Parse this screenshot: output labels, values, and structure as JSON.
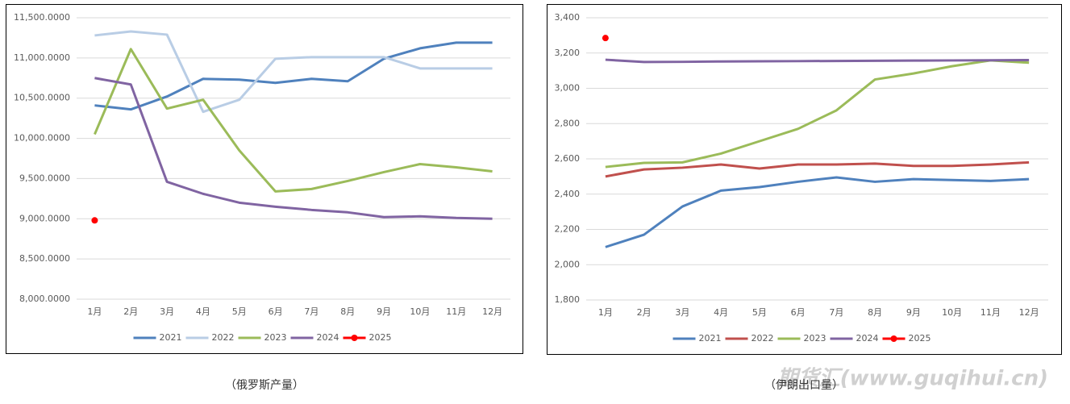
{
  "chart_data": [
    {
      "type": "line",
      "caption": "（俄罗斯产量）",
      "categories": [
        "1月",
        "2月",
        "3月",
        "4月",
        "5月",
        "6月",
        "7月",
        "8月",
        "9月",
        "10月",
        "11月",
        "12月"
      ],
      "ylim": [
        8000,
        11500
      ],
      "yticks": [
        {
          "value": 8000,
          "label": "8,000.0000"
        },
        {
          "value": 8500,
          "label": "8,500.0000"
        },
        {
          "value": 9000,
          "label": "9,000.0000"
        },
        {
          "value": 9500,
          "label": "9,500.0000"
        },
        {
          "value": 10000,
          "label": "10,000.0000"
        },
        {
          "value": 10500,
          "label": "10,500.0000"
        },
        {
          "value": 11000,
          "label": "11,000.0000"
        },
        {
          "value": 11500,
          "label": "11,500.0000"
        }
      ],
      "grid": true,
      "series": [
        {
          "name": "2021",
          "color": "#4f81bd",
          "values": [
            10410,
            10360,
            10520,
            10740,
            10730,
            10690,
            10740,
            10710,
            10990,
            11120,
            11190,
            11190
          ]
        },
        {
          "name": "2022",
          "color": "#b9cde5",
          "values": [
            11280,
            11330,
            11290,
            10330,
            10480,
            10990,
            11010,
            11010,
            11010,
            10870,
            10870,
            10870
          ]
        },
        {
          "name": "2023",
          "color": "#9bbb59",
          "values": [
            10050,
            11110,
            10370,
            10480,
            9850,
            9340,
            9370,
            9470,
            9580,
            9680,
            9640,
            9590
          ]
        },
        {
          "name": "2024",
          "color": "#8064a2",
          "values": [
            10750,
            10670,
            9460,
            9310,
            9200,
            9150,
            9110,
            9080,
            9020,
            9030,
            9010,
            9000
          ]
        },
        {
          "name": "2025",
          "color": "#ff0000",
          "marker": true,
          "values": [
            8980,
            null,
            null,
            null,
            null,
            null,
            null,
            null,
            null,
            null,
            null,
            null
          ]
        }
      ]
    },
    {
      "type": "line",
      "caption": "（伊朗出口量）",
      "categories": [
        "1月",
        "2月",
        "3月",
        "4月",
        "5月",
        "6月",
        "7月",
        "8月",
        "9月",
        "10月",
        "11月",
        "12月"
      ],
      "ylim": [
        1800,
        3400
      ],
      "yticks": [
        {
          "value": 1800,
          "label": "1,800"
        },
        {
          "value": 2000,
          "label": "2,000"
        },
        {
          "value": 2200,
          "label": "2,200"
        },
        {
          "value": 2400,
          "label": "2,400"
        },
        {
          "value": 2600,
          "label": "2,600"
        },
        {
          "value": 2800,
          "label": "2,800"
        },
        {
          "value": 3000,
          "label": "3,000"
        },
        {
          "value": 3200,
          "label": "3,200"
        },
        {
          "value": 3400,
          "label": "3,400"
        }
      ],
      "grid": true,
      "series": [
        {
          "name": "2021",
          "color": "#4f81bd",
          "values": [
            2100,
            2170,
            2330,
            2420,
            2440,
            2470,
            2495,
            2470,
            2485,
            2480,
            2475,
            2485
          ]
        },
        {
          "name": "2022",
          "color": "#c0504d",
          "values": [
            2500,
            2540,
            2550,
            2568,
            2545,
            2568,
            2568,
            2573,
            2560,
            2560,
            2568,
            2580
          ]
        },
        {
          "name": "2023",
          "color": "#9bbb59",
          "values": [
            2554,
            2577,
            2580,
            2630,
            2700,
            2770,
            2875,
            3050,
            3084,
            3125,
            3158,
            3145
          ]
        },
        {
          "name": "2024",
          "color": "#8064a2",
          "values": [
            3162,
            3149,
            3150,
            3152,
            3153,
            3154,
            3155,
            3156,
            3157,
            3158,
            3159,
            3160
          ]
        },
        {
          "name": "2025",
          "color": "#ff0000",
          "marker": true,
          "values": [
            3285,
            null,
            null,
            null,
            null,
            null,
            null,
            null,
            null,
            null,
            null,
            null
          ]
        }
      ]
    }
  ],
  "watermark": "期货汇(www.guqihui.cn)"
}
